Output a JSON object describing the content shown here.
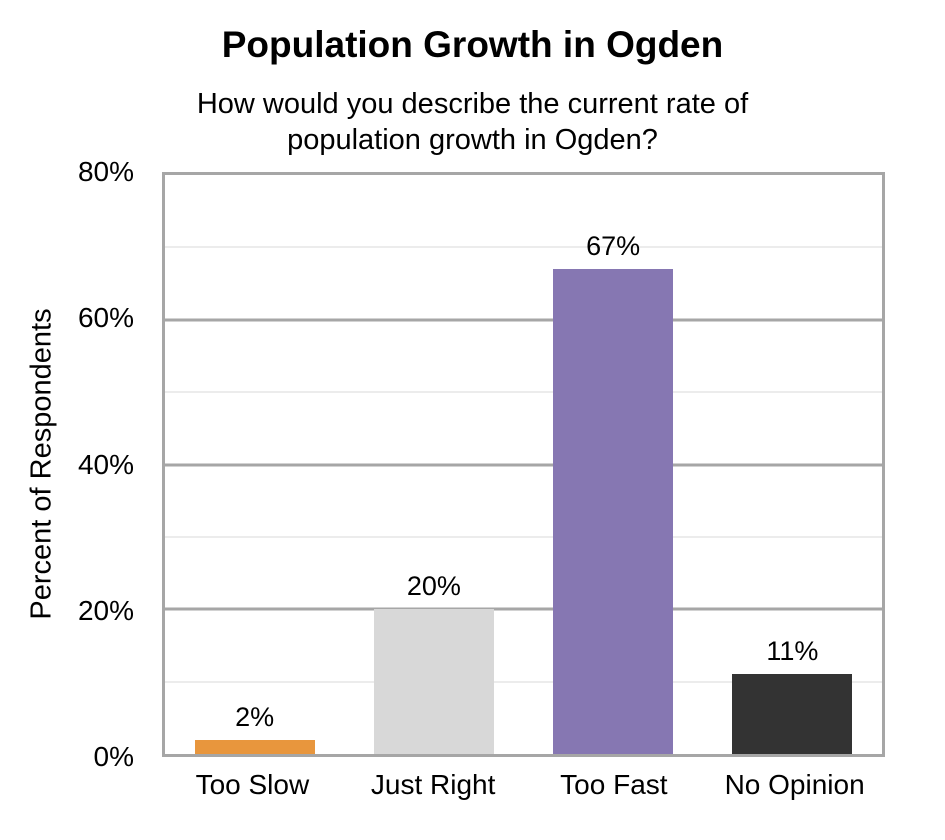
{
  "title": "Population Growth in Ogden",
  "subtitle_lines": [
    "How would you describe the current rate of",
    "population growth in Ogden?"
  ],
  "y_axis_title": "Percent of Respondents",
  "colors": {
    "plot_border": "#A6A6A6",
    "major_gridline": "#A6A6A6",
    "minor_gridline": "#D9D9D9",
    "text": "#000000"
  },
  "chart_data": {
    "type": "bar",
    "title": "Population Growth in Ogden",
    "subtitle": "How would you describe the current rate of population growth in Ogden?",
    "categories": [
      "Too Slow",
      "Just Right",
      "Too Fast",
      "No Opinion"
    ],
    "values": [
      2,
      20,
      67,
      11
    ],
    "data_labels": [
      "2%",
      "20%",
      "67%",
      "11%"
    ],
    "bar_colors": [
      "#E8963D",
      "#D8D8D8",
      "#8677B2",
      "#333333"
    ],
    "xlabel": "",
    "ylabel": "Percent of Respondents",
    "ylim": [
      0,
      80
    ],
    "y_ticks": [
      0,
      20,
      40,
      60,
      80
    ],
    "y_tick_labels": [
      "0%",
      "20%",
      "40%",
      "60%",
      "80%"
    ],
    "minor_grid_interval": 10,
    "major_grid_interval": 20,
    "grid": "horizontal",
    "legend": "none"
  }
}
